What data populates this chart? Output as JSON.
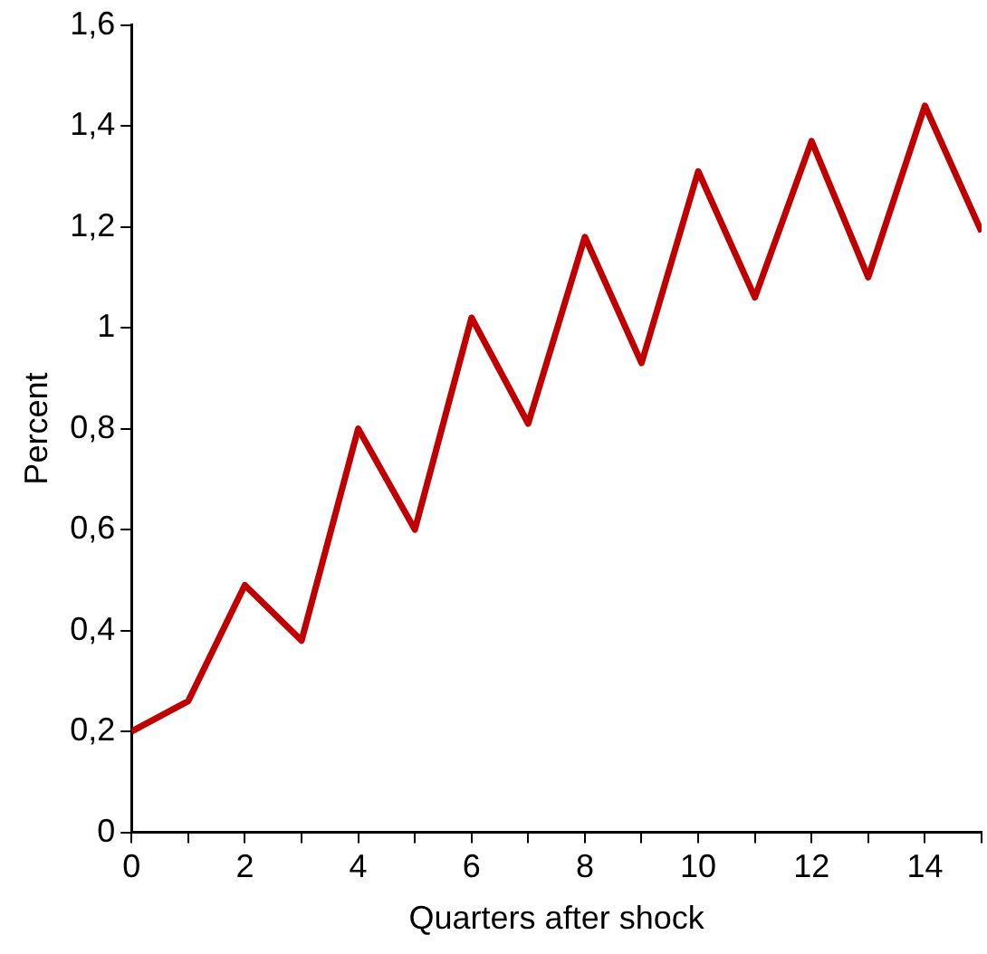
{
  "chart_data": {
    "type": "line",
    "xlabel": "Quarters after shock",
    "ylabel": "Percent",
    "x": [
      0,
      1,
      2,
      3,
      4,
      5,
      6,
      7,
      8,
      9,
      10,
      11,
      12,
      13,
      14,
      15
    ],
    "series": [
      {
        "color": "#c00000",
        "values": [
          0.2,
          0.26,
          0.49,
          0.38,
          0.8,
          0.6,
          1.02,
          0.81,
          1.18,
          0.93,
          1.31,
          1.06,
          1.37,
          1.1,
          1.44,
          1.19
        ]
      }
    ],
    "xlim": [
      0,
      15
    ],
    "xticks": [
      0,
      {
        "value": 1,
        "label": null
      },
      2,
      {
        "value": 3,
        "label": null
      },
      4,
      {
        "value": 5,
        "label": null
      },
      6,
      {
        "value": 7,
        "label": null
      },
      8,
      {
        "value": 9,
        "label": null
      },
      10,
      {
        "value": 11,
        "label": null
      },
      12,
      {
        "value": 13,
        "label": null
      },
      14,
      {
        "value": 15,
        "label": null
      }
    ],
    "ylim": [
      0,
      1.6
    ],
    "yticks": [
      0,
      {
        "value": 0.2,
        "label": "0,2"
      },
      {
        "value": 0.4,
        "label": "0,4"
      },
      {
        "value": 0.6,
        "label": "0,6"
      },
      {
        "value": 0.8,
        "label": "0,8"
      },
      1,
      {
        "value": 1.2,
        "label": "1,2"
      },
      {
        "value": 1.4,
        "label": "1,4"
      },
      {
        "value": 1.6,
        "label": "1,6"
      }
    ],
    "grid": false,
    "legend": false,
    "marker": "none",
    "line_style": "solid"
  }
}
